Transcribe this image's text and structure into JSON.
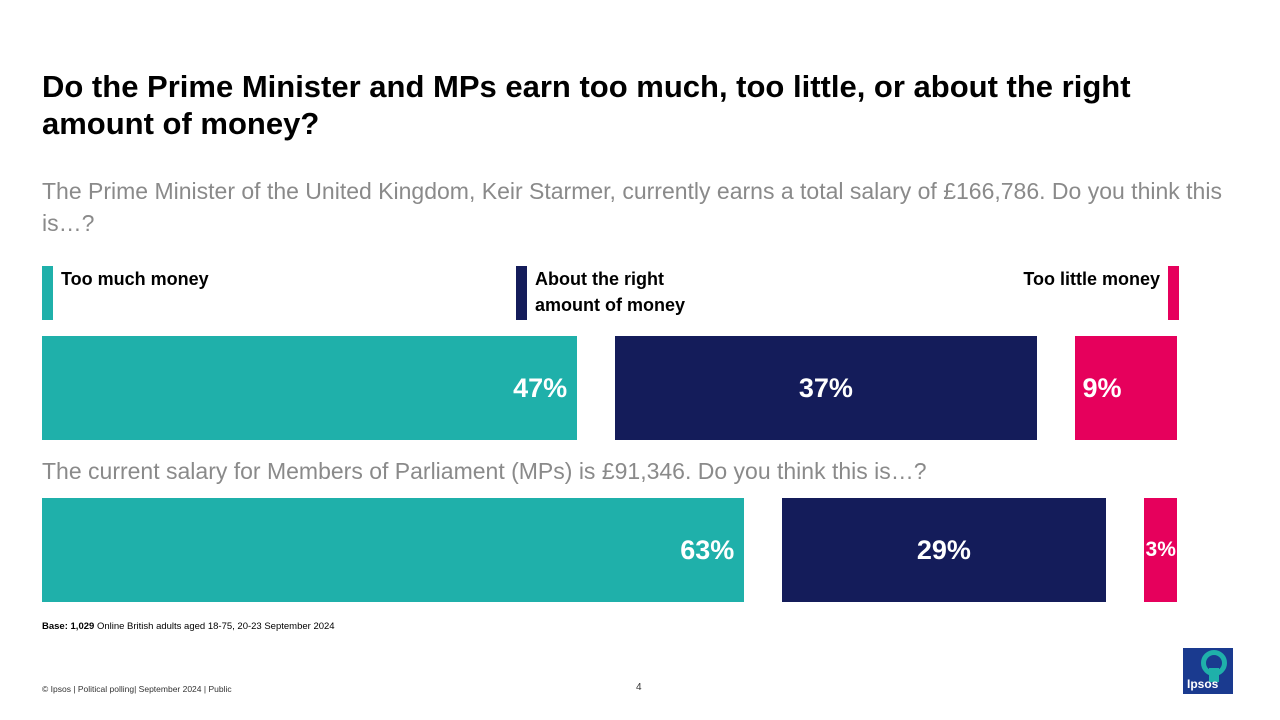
{
  "title": "Do the Prime Minister and MPs earn too much, too little, or about the right amount of money?",
  "questions": [
    "The Prime Minister of the United Kingdom, Keir Starmer, currently earns a total salary of £166,786. Do you think this is…?",
    "The current salary for Members of Parliament (MPs) is £91,346. Do you think this is…?"
  ],
  "legend": [
    {
      "label": "Too much money",
      "color": "#1fb0aa"
    },
    {
      "label": "About the right amount of money",
      "color": "#141c5a"
    },
    {
      "label": "Too little money",
      "color": "#e6005c"
    }
  ],
  "chart_data": {
    "type": "bar",
    "orientation": "horizontal",
    "stacked": true,
    "categories": [
      "Prime Minister",
      "MPs"
    ],
    "series": [
      {
        "name": "Too much money",
        "values": [
          47,
          63
        ],
        "labels": [
          "47%",
          "63%"
        ],
        "color": "#1fb0aa"
      },
      {
        "name": "About the right amount of money",
        "values": [
          37,
          29
        ],
        "labels": [
          "37%",
          "29%"
        ],
        "color": "#141c5a"
      },
      {
        "name": "Too little money",
        "values": [
          9,
          3
        ],
        "labels": [
          "9%",
          "3%"
        ],
        "color": "#e6005c"
      }
    ],
    "value_unit": "%",
    "legend_position": "top"
  },
  "base": {
    "label": "Base:",
    "count": "1,029",
    "text": "Online British adults aged 18-75, 20-23 September 2024"
  },
  "footer": "© Ipsos | Political polling| September 2024 | Public",
  "page_number": "4",
  "logo_text": "Ipsos"
}
